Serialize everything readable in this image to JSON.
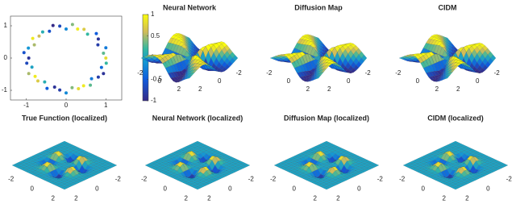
{
  "chart_data": [
    {
      "type": "scatter",
      "x": [
        1.0,
        0.94,
        1.0,
        0.8,
        0.81,
        0.76,
        0.54,
        0.45,
        0.29,
        0.16,
        0.0,
        -0.16,
        -0.33,
        -0.42,
        -0.59,
        -0.68,
        -0.84,
        -0.8,
        -0.95,
        -1.06,
        -0.94,
        -0.99,
        -0.86,
        -0.94,
        -0.78,
        -0.71,
        -0.54,
        -0.48,
        -0.29,
        -0.16,
        0.0,
        0.15,
        0.31,
        0.44,
        0.61,
        0.64,
        0.81,
        0.94,
        0.89,
        1.01
      ],
      "y": [
        0.0,
        0.15,
        0.32,
        0.41,
        0.59,
        0.76,
        0.74,
        0.89,
        0.9,
        1.04,
        0.9,
        0.99,
        1.01,
        0.83,
        0.81,
        0.68,
        0.61,
        0.41,
        0.31,
        0.17,
        0.0,
        -0.16,
        -0.28,
        -0.48,
        -0.57,
        -0.71,
        -0.74,
        -0.94,
        -0.9,
        -0.99,
        -1.08,
        -0.92,
        -0.95,
        -0.86,
        -0.84,
        -0.64,
        -0.59,
        -0.48,
        -0.29,
        -0.16
      ],
      "values": [
        0.8,
        0.3,
        -0.3,
        -0.8,
        -0.9,
        -0.5,
        0.2,
        0.7,
        0.9,
        0.4,
        -0.2,
        -0.7,
        -1.0,
        -0.6,
        0.1,
        0.6,
        0.9,
        0.5,
        -0.1,
        -0.6,
        -0.9,
        -0.7,
        0.0,
        0.5,
        0.9,
        0.7,
        0.1,
        -0.5,
        -0.9,
        -0.8,
        -0.2,
        0.4,
        0.8,
        0.9,
        0.3,
        -0.3,
        -0.8,
        -0.9,
        -0.4,
        0.2
      ],
      "xlim": [
        -1.4,
        1.4
      ],
      "ylim": [
        -1.3,
        1.3
      ],
      "xticks": [
        -1,
        0,
        1
      ],
      "yticks": [
        -1,
        0,
        1
      ],
      "clim": [
        -1,
        1
      ],
      "cticks": [
        -1,
        -0.5,
        0,
        0.5,
        1
      ]
    },
    {
      "type": "surface",
      "title": "Neural Network",
      "xticks": [
        -2,
        0,
        2
      ],
      "yticks": [
        -2,
        0,
        2
      ]
    },
    {
      "type": "surface",
      "title": "Diffusion Map",
      "xticks": [
        -2,
        0,
        2
      ],
      "yticks": [
        -2,
        0,
        2
      ]
    },
    {
      "type": "surface",
      "title": "CIDM",
      "xticks": [
        -2,
        0,
        2
      ],
      "yticks": [
        -2,
        0,
        2
      ]
    },
    {
      "type": "surface",
      "title": "True Function (localized)",
      "xticks": [
        -2,
        0,
        2
      ],
      "yticks": [
        -2,
        0,
        2
      ]
    },
    {
      "type": "surface",
      "title": "Neural Network (localized)",
      "xticks": [
        -2,
        0,
        2
      ],
      "yticks": [
        -2,
        0,
        2
      ]
    },
    {
      "type": "surface",
      "title": "Diffusion Map (localized)",
      "xticks": [
        -2,
        0,
        2
      ],
      "yticks": [
        -2,
        0,
        2
      ]
    },
    {
      "type": "surface",
      "title": "CIDM (localized)",
      "xticks": [
        -2,
        0,
        2
      ],
      "yticks": [
        -2,
        0,
        2
      ]
    }
  ]
}
